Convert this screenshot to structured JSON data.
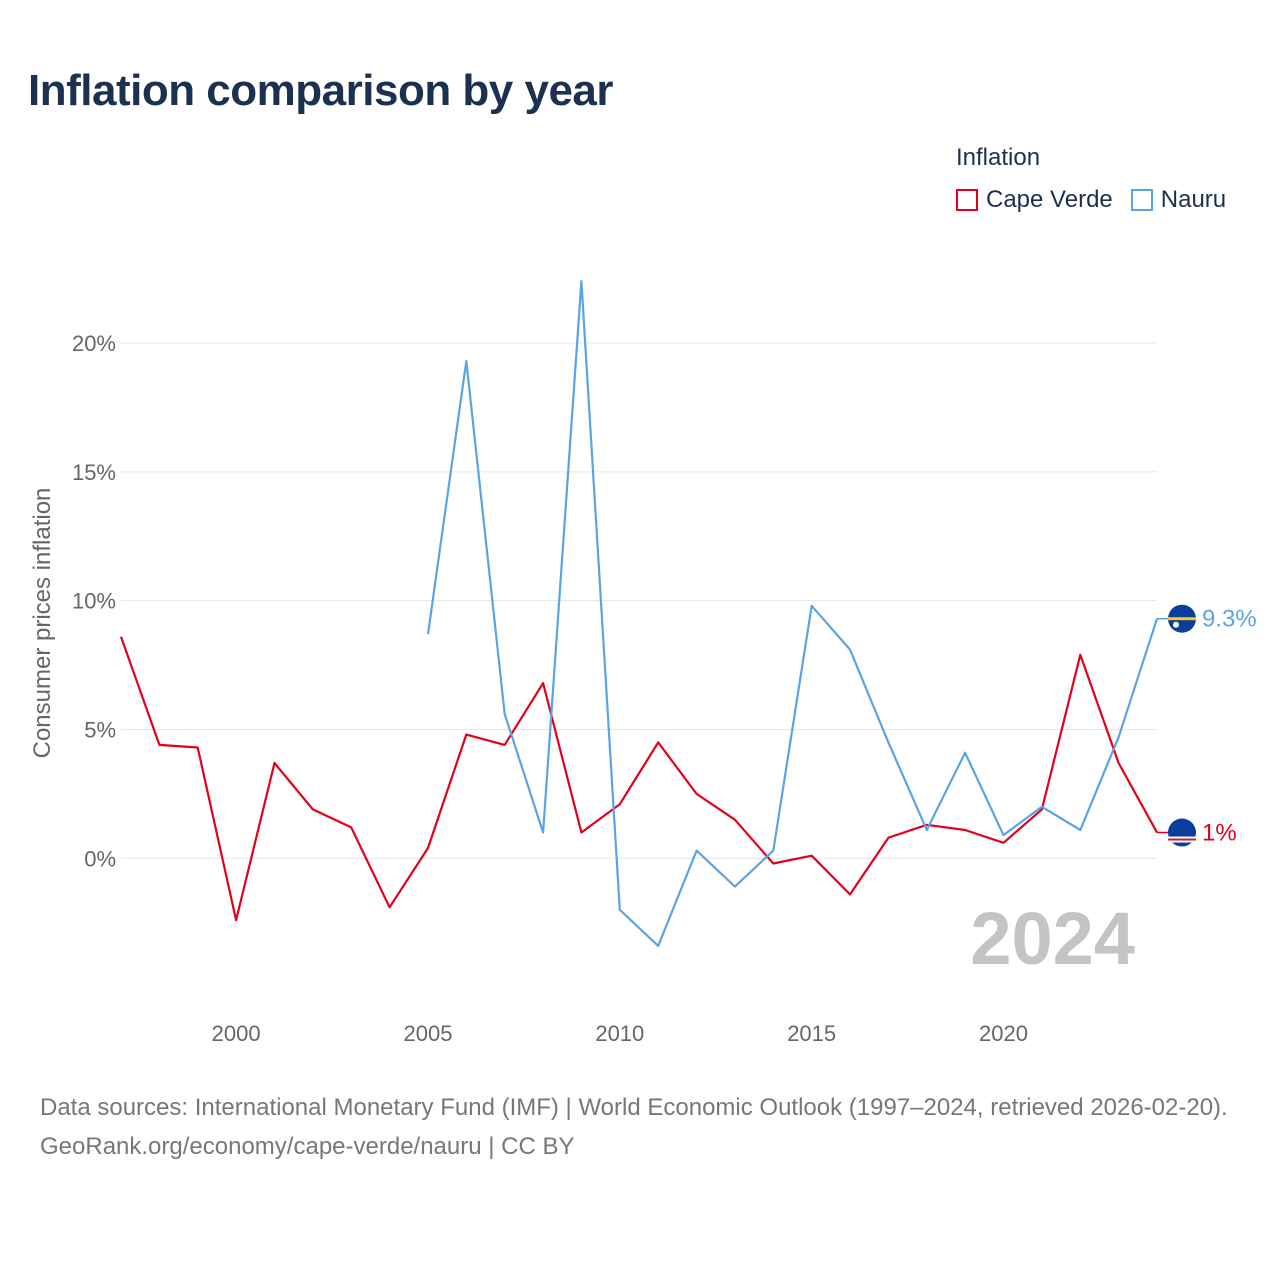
{
  "title": "Inflation comparison by year",
  "legend": {
    "title": "Inflation",
    "items": [
      {
        "label": "Cape Verde",
        "color": "#e3001b"
      },
      {
        "label": "Nauru",
        "color": "#5aa4e6"
      }
    ]
  },
  "chart_data": {
    "type": "line",
    "title": "Inflation comparison by year",
    "xlabel": "",
    "ylabel": "Consumer prices inflation",
    "xlim": [
      1997,
      2024
    ],
    "ylim": [
      -5.5,
      24
    ],
    "x_ticks": [
      2000,
      2005,
      2010,
      2015,
      2020
    ],
    "y_ticks": [
      0,
      5,
      10,
      15,
      20
    ],
    "y_tick_labels": [
      "0%",
      "5%",
      "10%",
      "15%",
      "20%"
    ],
    "year_watermark": "2024",
    "series": [
      {
        "name": "Cape Verde",
        "color": "#e3001b",
        "end_label": "1%",
        "x": [
          1997,
          1998,
          1999,
          2000,
          2001,
          2002,
          2003,
          2004,
          2005,
          2006,
          2007,
          2008,
          2009,
          2010,
          2011,
          2012,
          2013,
          2014,
          2015,
          2016,
          2017,
          2018,
          2019,
          2020,
          2021,
          2022,
          2023,
          2024
        ],
        "values": [
          8.6,
          4.4,
          4.3,
          -2.4,
          3.7,
          1.9,
          1.2,
          -1.9,
          0.4,
          4.8,
          4.4,
          6.8,
          1.0,
          2.1,
          4.5,
          2.5,
          1.5,
          -0.2,
          0.1,
          -1.4,
          0.8,
          1.3,
          1.1,
          0.6,
          1.9,
          7.9,
          3.7,
          1.0
        ]
      },
      {
        "name": "Nauru",
        "color": "#5aa4e6",
        "end_label": "9.3%",
        "x": [
          2005,
          2006,
          2007,
          2008,
          2009,
          2010,
          2011,
          2012,
          2013,
          2014,
          2015,
          2016,
          2017,
          2018,
          2019,
          2020,
          2021,
          2022,
          2023,
          2024
        ],
        "values": [
          8.7,
          19.3,
          5.6,
          1.0,
          22.4,
          -2.0,
          -3.4,
          0.3,
          -1.1,
          0.3,
          9.8,
          8.1,
          4.5,
          1.1,
          4.1,
          0.9,
          2.0,
          1.1,
          4.7,
          9.3
        ]
      }
    ]
  },
  "footer": {
    "sources": "Data sources: International Monetary Fund (IMF) | World Economic Outlook (1997–2024, retrieved 2026-02-20).",
    "credit": "GeoRank.org/economy/cape-verde/nauru | CC BY"
  }
}
